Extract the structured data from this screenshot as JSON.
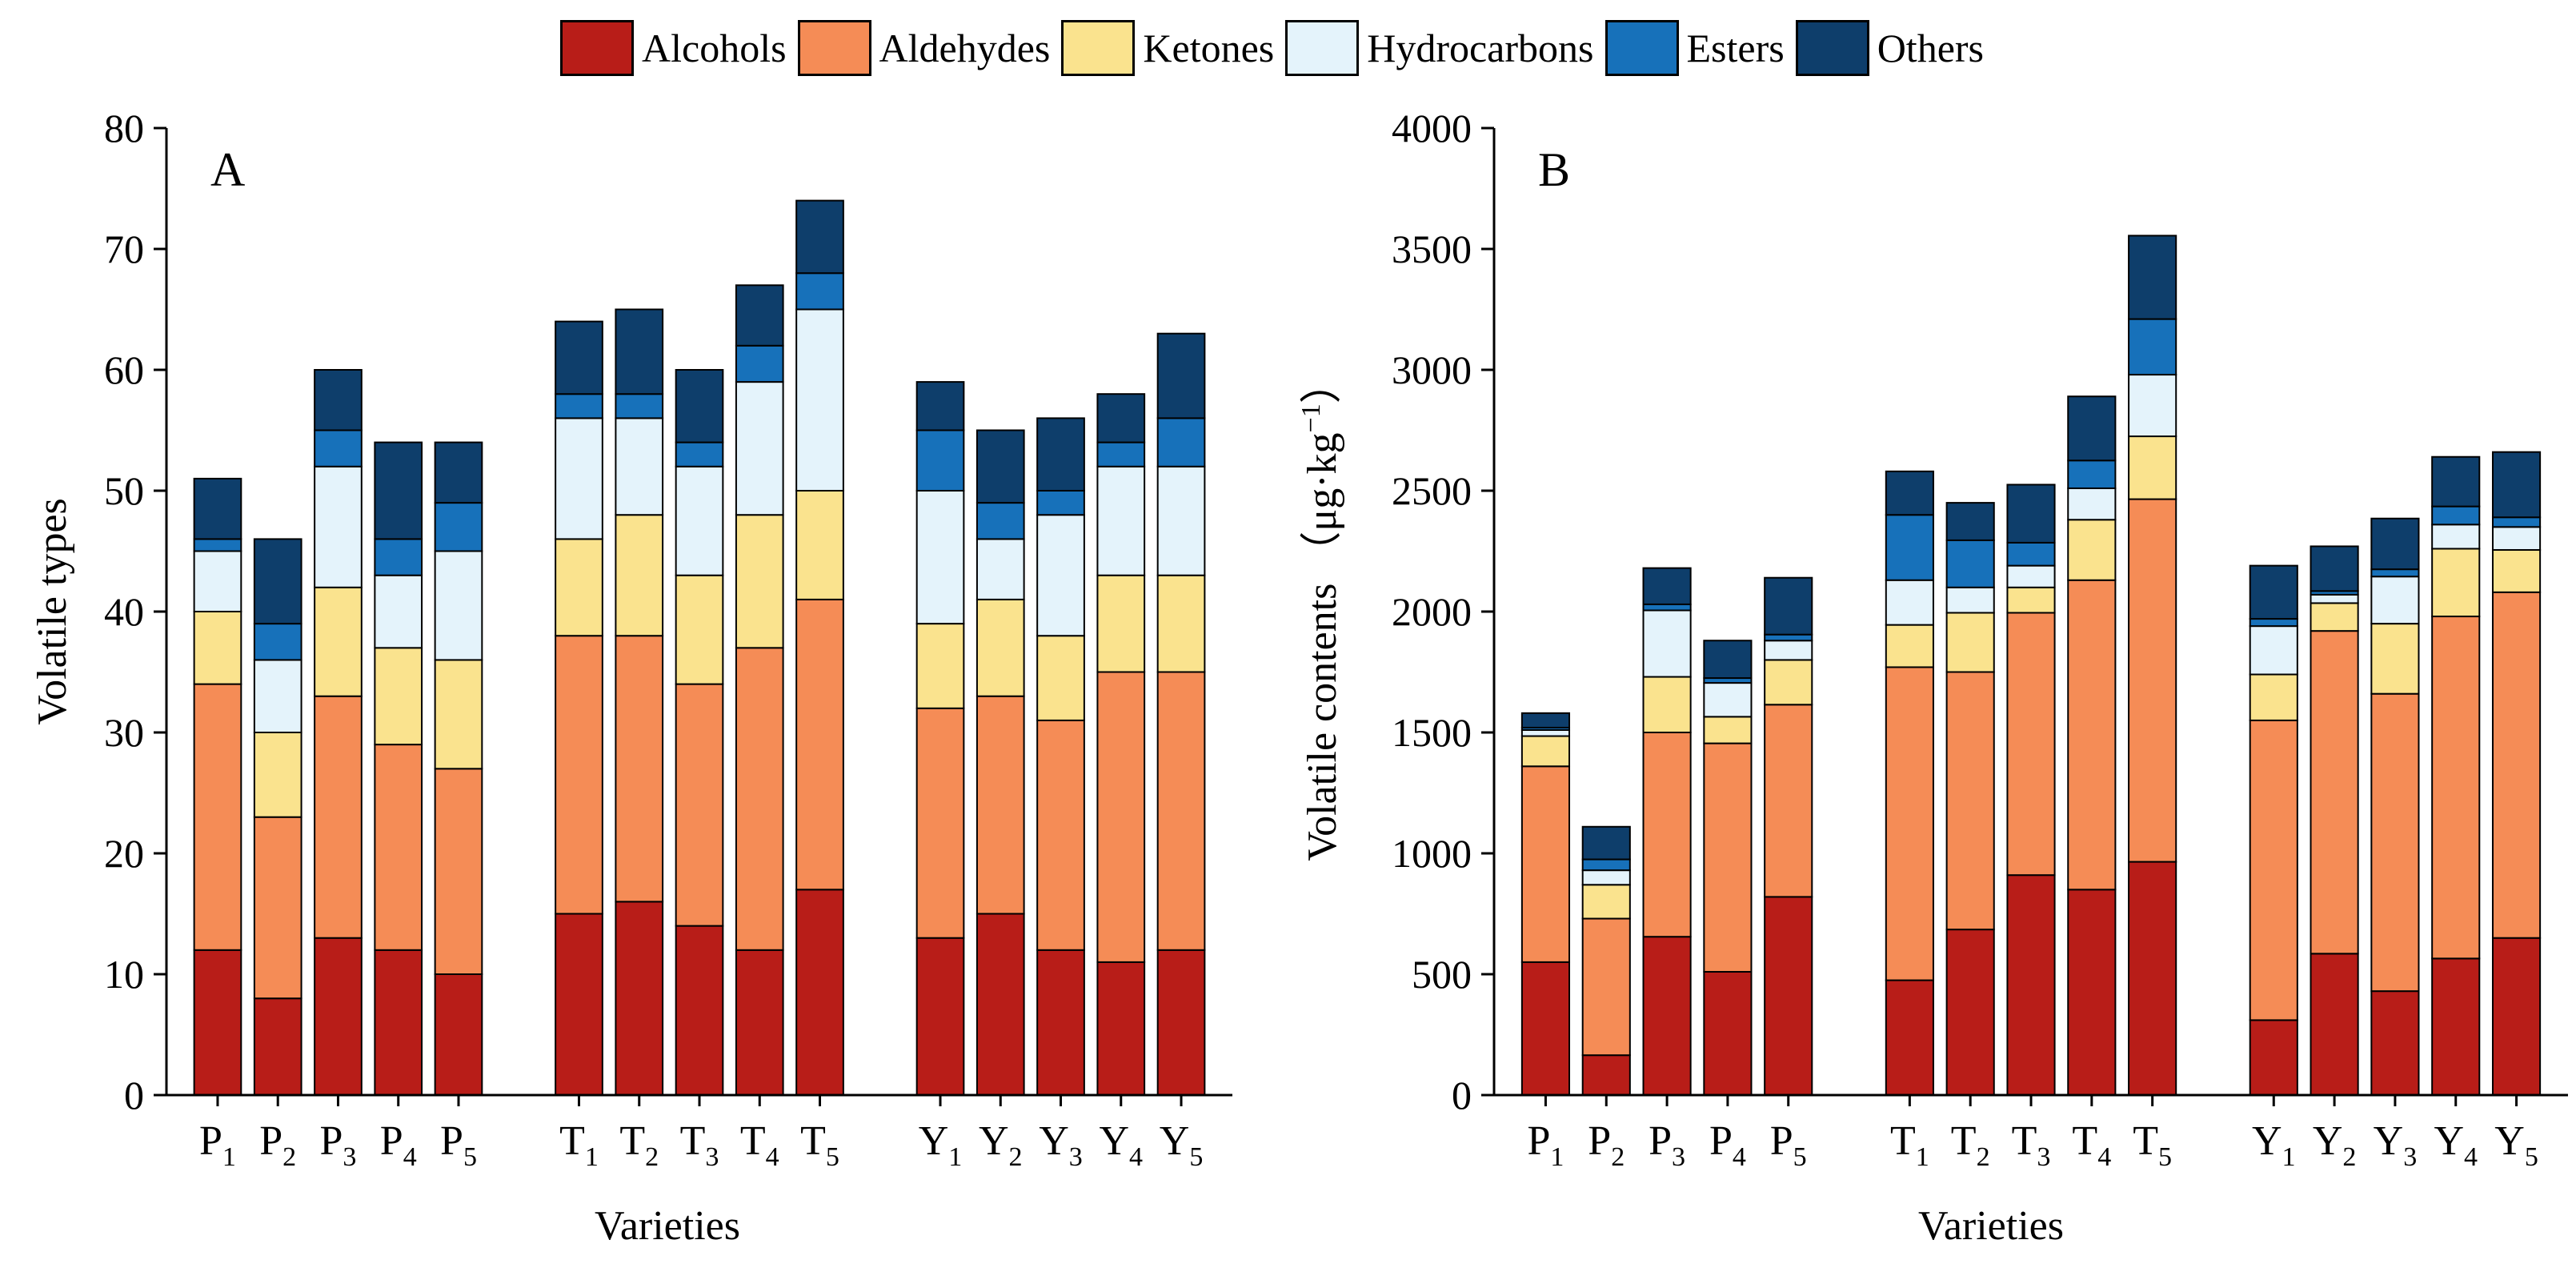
{
  "legend": [
    {
      "name": "Alcohols",
      "color": "#B81D18"
    },
    {
      "name": "Aldehydes",
      "color": "#F58C56"
    },
    {
      "name": "Ketones",
      "color": "#FAE38E"
    },
    {
      "name": "Hydrocarbons",
      "color": "#E4F3FB"
    },
    {
      "name": "Esters",
      "color": "#1771BA"
    },
    {
      "name": "Others",
      "color": "#0E3E6B"
    }
  ],
  "chart_data": [
    {
      "type": "bar",
      "stacked": true,
      "panel_label": "A",
      "title": "",
      "xlabel": "Varieties",
      "ylabel": "Volatile types",
      "ylim": [
        0,
        80
      ],
      "yticks": [
        0,
        10,
        20,
        30,
        40,
        50,
        60,
        70,
        80
      ],
      "groups": [
        {
          "categories": [
            {
              "base": "P",
              "sub": "1"
            },
            {
              "base": "P",
              "sub": "2"
            },
            {
              "base": "P",
              "sub": "3"
            },
            {
              "base": "P",
              "sub": "4"
            },
            {
              "base": "P",
              "sub": "5"
            }
          ]
        },
        {
          "categories": [
            {
              "base": "T",
              "sub": "1"
            },
            {
              "base": "T",
              "sub": "2"
            },
            {
              "base": "T",
              "sub": "3"
            },
            {
              "base": "T",
              "sub": "4"
            },
            {
              "base": "T",
              "sub": "5"
            }
          ]
        },
        {
          "categories": [
            {
              "base": "Y",
              "sub": "1"
            },
            {
              "base": "Y",
              "sub": "2"
            },
            {
              "base": "Y",
              "sub": "3"
            },
            {
              "base": "Y",
              "sub": "4"
            },
            {
              "base": "Y",
              "sub": "5"
            }
          ]
        }
      ],
      "series": [
        {
          "name": "Alcohols",
          "values": [
            12,
            8,
            13,
            12,
            10,
            15,
            16,
            14,
            12,
            17,
            13,
            15,
            12,
            11,
            12
          ]
        },
        {
          "name": "Aldehydes",
          "values": [
            22,
            15,
            20,
            17,
            17,
            23,
            22,
            20,
            25,
            24,
            19,
            18,
            19,
            24,
            23
          ]
        },
        {
          "name": "Ketones",
          "values": [
            6,
            7,
            9,
            8,
            9,
            8,
            10,
            9,
            11,
            9,
            7,
            8,
            7,
            8,
            8
          ]
        },
        {
          "name": "Hydrocarbons",
          "values": [
            5,
            6,
            10,
            6,
            9,
            10,
            8,
            9,
            11,
            15,
            11,
            5,
            10,
            9,
            9
          ]
        },
        {
          "name": "Esters",
          "values": [
            1,
            3,
            3,
            3,
            4,
            2,
            2,
            2,
            3,
            3,
            5,
            3,
            2,
            2,
            4
          ]
        },
        {
          "name": "Others",
          "values": [
            5,
            7,
            5,
            8,
            5,
            6,
            7,
            6,
            5,
            6,
            4,
            6,
            6,
            4,
            7
          ]
        }
      ]
    },
    {
      "type": "bar",
      "stacked": true,
      "panel_label": "B",
      "title": "",
      "xlabel": "Varieties",
      "ylabel": "Volatile contents （μg·kg",
      "ylabel_sup": "−1",
      "ylabel_close": "）",
      "ylim": [
        0,
        4000
      ],
      "yticks": [
        0,
        500,
        1000,
        1500,
        2000,
        2500,
        3000,
        3500,
        4000
      ],
      "groups": [
        {
          "categories": [
            {
              "base": "P",
              "sub": "1"
            },
            {
              "base": "P",
              "sub": "2"
            },
            {
              "base": "P",
              "sub": "3"
            },
            {
              "base": "P",
              "sub": "4"
            },
            {
              "base": "P",
              "sub": "5"
            }
          ]
        },
        {
          "categories": [
            {
              "base": "T",
              "sub": "1"
            },
            {
              "base": "T",
              "sub": "2"
            },
            {
              "base": "T",
              "sub": "3"
            },
            {
              "base": "T",
              "sub": "4"
            },
            {
              "base": "T",
              "sub": "5"
            }
          ]
        },
        {
          "categories": [
            {
              "base": "Y",
              "sub": "1"
            },
            {
              "base": "Y",
              "sub": "2"
            },
            {
              "base": "Y",
              "sub": "3"
            },
            {
              "base": "Y",
              "sub": "4"
            },
            {
              "base": "Y",
              "sub": "5"
            }
          ]
        }
      ],
      "series": [
        {
          "name": "Alcohols",
          "values": [
            550,
            165,
            655,
            510,
            820,
            475,
            685,
            910,
            850,
            965,
            310,
            585,
            430,
            565,
            650
          ]
        },
        {
          "name": "Aldehydes",
          "values": [
            810,
            565,
            845,
            945,
            795,
            1295,
            1065,
            1085,
            1280,
            1500,
            1240,
            1335,
            1230,
            1415,
            1430
          ]
        },
        {
          "name": "Ketones",
          "values": [
            125,
            140,
            230,
            110,
            185,
            175,
            245,
            105,
            250,
            260,
            190,
            115,
            290,
            280,
            175
          ]
        },
        {
          "name": "Hydrocarbons",
          "values": [
            25,
            60,
            275,
            140,
            80,
            185,
            105,
            90,
            130,
            255,
            200,
            35,
            195,
            100,
            95
          ]
        },
        {
          "name": "Esters",
          "values": [
            10,
            45,
            25,
            20,
            25,
            270,
            195,
            95,
            115,
            230,
            30,
            15,
            30,
            75,
            40
          ]
        },
        {
          "name": "Others",
          "values": [
            60,
            135,
            150,
            155,
            235,
            180,
            155,
            240,
            265,
            345,
            220,
            185,
            210,
            205,
            270
          ]
        }
      ]
    }
  ]
}
